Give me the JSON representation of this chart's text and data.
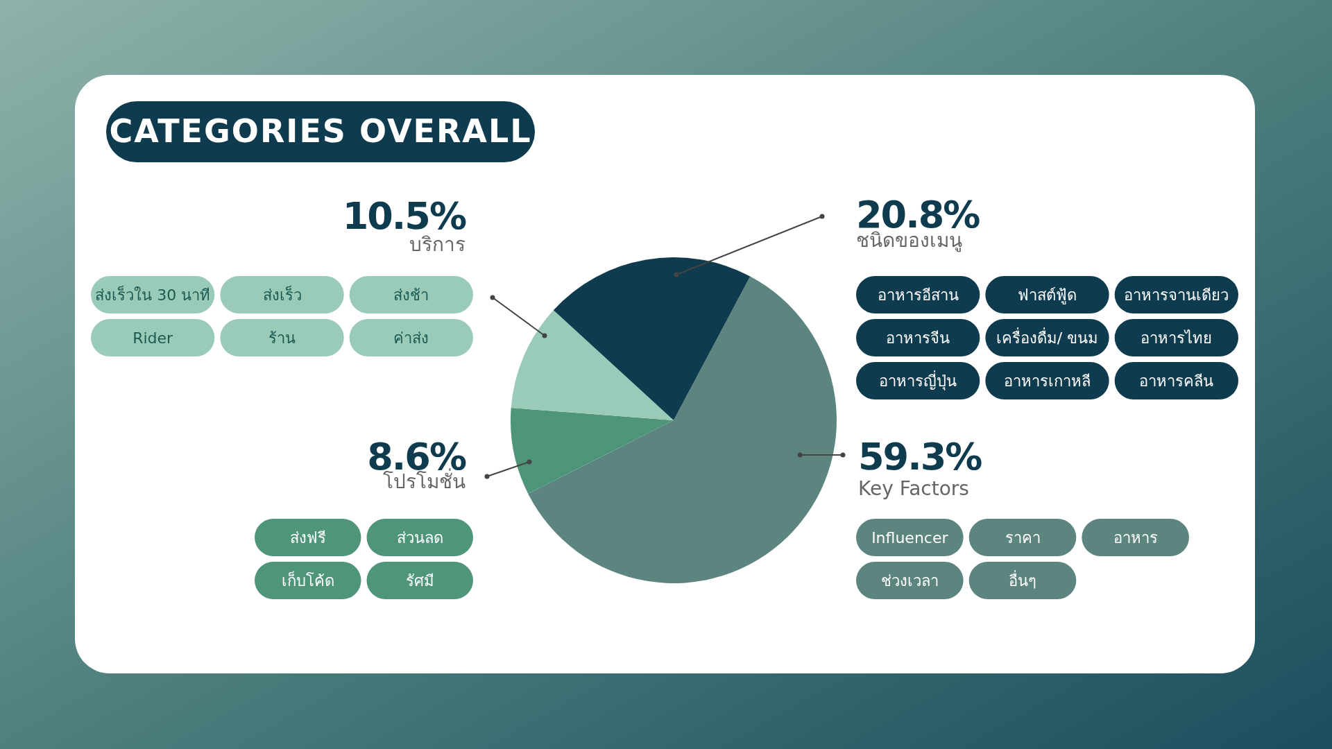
{
  "chart_data": {
    "type": "pie",
    "title": "CATEGORIES OVERALL",
    "categories": [
      "Key Factors",
      "โปรโมชั่น",
      "บริการ",
      "ชนิดของเมนู"
    ],
    "values": [
      59.3,
      8.6,
      10.5,
      20.8
    ],
    "value_labels": [
      "59.3%",
      "8.6%",
      "10.5%",
      "20.8%"
    ],
    "colors": [
      "#5d8580",
      "#4f957a",
      "#9acbb9",
      "#0e3b4e"
    ],
    "annotations": [
      {
        "text": "Influencer",
        "x": "Key Factors"
      },
      {
        "text": "ราคา",
        "x": "Key Factors"
      },
      {
        "text": "อาหาร",
        "x": "Key Factors"
      },
      {
        "text": "ช่วงเวลา",
        "x": "Key Factors"
      },
      {
        "text": "อื่นๆ",
        "x": "Key Factors"
      },
      {
        "text": "ส่งฟรี",
        "x": "โปรโมชั่น"
      },
      {
        "text": "ส่วนลด",
        "x": "โปรโมชั่น"
      },
      {
        "text": "เก็บโค้ด",
        "x": "โปรโมชั่น"
      },
      {
        "text": "รัศมี",
        "x": "โปรโมชั่น"
      },
      {
        "text": "ส่งเร็วใน 30 นาที",
        "x": "บริการ"
      },
      {
        "text": "ส่งเร็ว",
        "x": "บริการ"
      },
      {
        "text": "ส่งช้า",
        "x": "บริการ"
      },
      {
        "text": "Rider",
        "x": "บริการ"
      },
      {
        "text": "ร้าน",
        "x": "บริการ"
      },
      {
        "text": "ค่าส่ง",
        "x": "บริการ"
      },
      {
        "text": "อาหารอีสาน",
        "x": "ชนิดของเมนู"
      },
      {
        "text": "ฟาสต์ฟู้ด",
        "x": "ชนิดของเมนู"
      },
      {
        "text": "อาหารจานเดียว",
        "x": "ชนิดของเมนู"
      },
      {
        "text": "อาหารจีน",
        "x": "ชนิดของเมนู"
      },
      {
        "text": "เครื่องดื่ม/ ขนม",
        "x": "ชนิดของเมนู"
      },
      {
        "text": "อาหารไทย",
        "x": "ชนิดของเมนู"
      },
      {
        "text": "อาหารญี่ปุ่น",
        "x": "ชนิดของเมนู"
      },
      {
        "text": "อาหารเกาหลี",
        "x": "ชนิดของเมนู"
      },
      {
        "text": "อาหารคลีน",
        "x": "ชนิดของเมนู"
      }
    ]
  }
}
